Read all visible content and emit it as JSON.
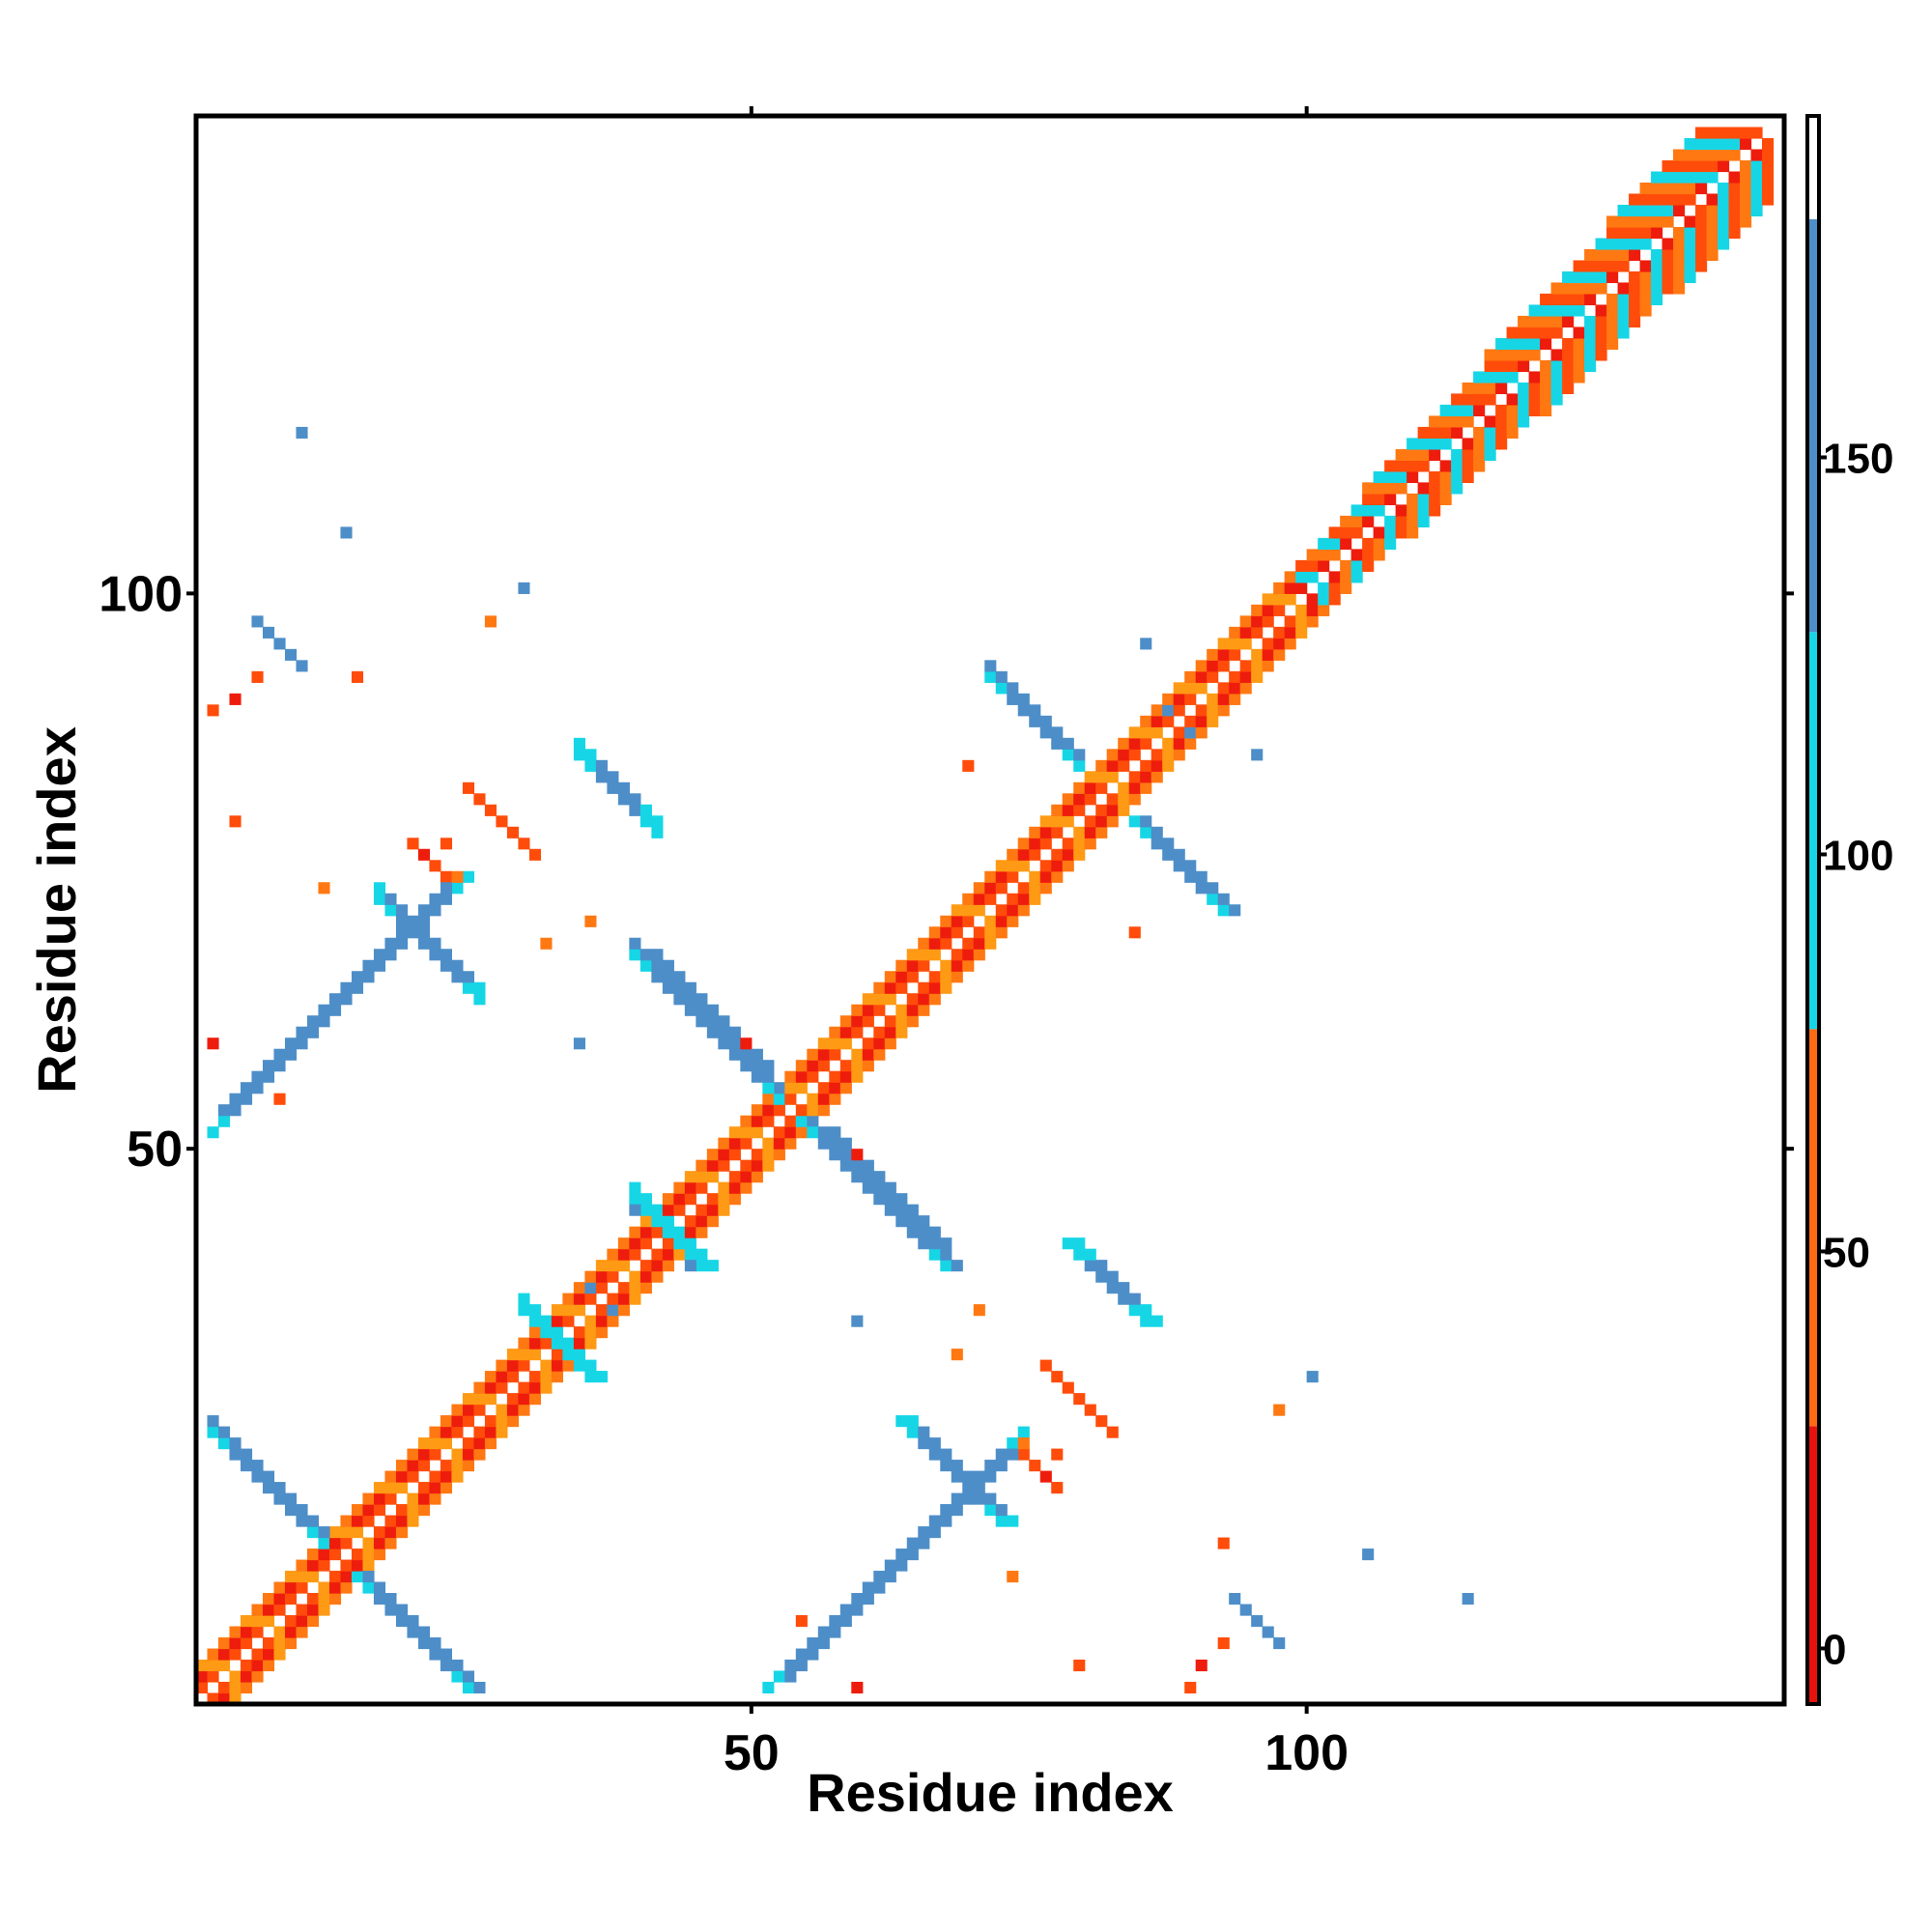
{
  "chart_data": {
    "type": "heatmap",
    "title": "",
    "xlabel": "Residue index",
    "ylabel": "Residue index",
    "xlim": [
      0,
      143
    ],
    "ylim": [
      0,
      143
    ],
    "x_ticks": [
      50,
      100
    ],
    "y_ticks": [
      50,
      100
    ],
    "grid": false,
    "colorbar": {
      "ticks": [
        0,
        50,
        100,
        150
      ],
      "range": [
        -7,
        193
      ],
      "bands": [
        {
          "from": -7,
          "to": 28,
          "color": "#e8120c"
        },
        {
          "from": 28,
          "to": 78,
          "color": "#ff6a10"
        },
        {
          "from": 78,
          "to": 128,
          "color": "#16d6e6"
        },
        {
          "from": 128,
          "to": 180,
          "color": "#4d8ec8"
        },
        {
          "from": 180,
          "to": 193,
          "color": "#ffffff"
        }
      ]
    },
    "colors": {
      "red": "#ee1c0c",
      "red_orange": "#ff4c0a",
      "orange": "#ff7812",
      "amber": "#ff9a14",
      "cyan": "#16d6e6",
      "steel_blue": "#4d8ec8"
    }
  }
}
